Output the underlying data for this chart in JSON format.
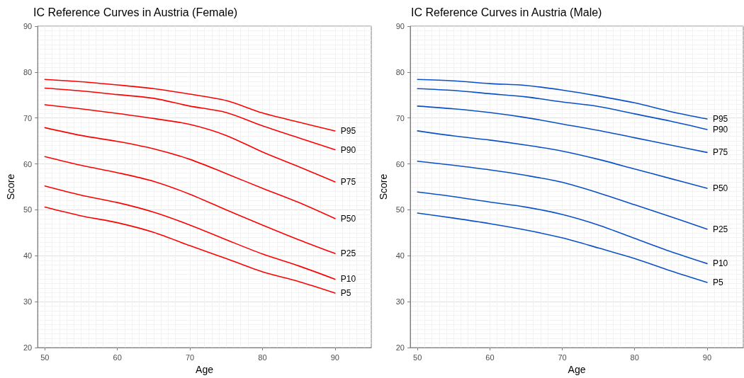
{
  "chart_data": [
    {
      "type": "line",
      "title": "IC Reference Curves in Austria (Female)",
      "xlabel": "Age",
      "ylabel": "Score",
      "xlim": [
        49,
        95
      ],
      "ylim": [
        20,
        90
      ],
      "xticks": [
        50,
        60,
        70,
        80,
        90
      ],
      "yticks": [
        20,
        30,
        40,
        50,
        60,
        70,
        80,
        90
      ],
      "grid": true,
      "legend": false,
      "marker": "none",
      "line_style": "solid",
      "x": [
        50,
        55,
        60,
        65,
        70,
        75,
        80,
        85,
        90
      ],
      "series": [
        {
          "name": "P95",
          "color": "#ff0000",
          "values": [
            78.4,
            77.9,
            77.2,
            76.4,
            75.2,
            73.8,
            71.1,
            69.1,
            67.2
          ]
        },
        {
          "name": "P90",
          "color": "#ff0000",
          "values": [
            76.5,
            75.9,
            75.1,
            74.3,
            72.6,
            71.2,
            68.3,
            65.7,
            63.1
          ]
        },
        {
          "name": "P75",
          "color": "#ff0000",
          "values": [
            72.9,
            72.0,
            71.0,
            69.9,
            68.6,
            66.2,
            62.6,
            59.4,
            56.1
          ]
        },
        {
          "name": "P50",
          "color": "#ff0000",
          "values": [
            67.9,
            66.2,
            64.9,
            63.3,
            61.0,
            57.9,
            54.7,
            51.6,
            48.1
          ]
        },
        {
          "name": "P25",
          "color": "#ff0000",
          "values": [
            61.6,
            59.7,
            58.1,
            56.2,
            53.4,
            50.0,
            46.7,
            43.5,
            40.5
          ]
        },
        {
          "name": "P10",
          "color": "#ff0000",
          "values": [
            55.2,
            53.2,
            51.6,
            49.5,
            46.7,
            43.5,
            40.4,
            37.8,
            34.9
          ]
        },
        {
          "name": "P5",
          "color": "#ff0000",
          "values": [
            50.6,
            48.7,
            47.2,
            45.1,
            42.2,
            39.4,
            36.5,
            34.4,
            31.9
          ]
        }
      ]
    },
    {
      "type": "line",
      "title": "IC Reference Curves in Austria (Male)",
      "xlabel": "Age",
      "ylabel": "Score",
      "xlim": [
        49,
        95
      ],
      "ylim": [
        20,
        90
      ],
      "xticks": [
        50,
        60,
        70,
        80,
        90
      ],
      "yticks": [
        20,
        30,
        40,
        50,
        60,
        70,
        80,
        90
      ],
      "grid": true,
      "legend": false,
      "marker": "none",
      "line_style": "solid",
      "x": [
        50,
        55,
        60,
        65,
        70,
        75,
        80,
        85,
        90
      ],
      "series": [
        {
          "name": "P95",
          "color": "#0a50c8",
          "values": [
            78.4,
            78.1,
            77.5,
            77.1,
            76.1,
            74.8,
            73.3,
            71.4,
            69.8
          ]
        },
        {
          "name": "P90",
          "color": "#0a50c8",
          "values": [
            76.4,
            76.0,
            75.3,
            74.6,
            73.5,
            72.5,
            70.9,
            69.3,
            67.5
          ]
        },
        {
          "name": "P75",
          "color": "#0a50c8",
          "values": [
            72.6,
            72.0,
            71.2,
            70.1,
            68.7,
            67.3,
            65.7,
            64.1,
            62.5
          ]
        },
        {
          "name": "P50",
          "color": "#0a50c8",
          "values": [
            67.2,
            66.1,
            65.2,
            64.1,
            62.8,
            61.0,
            58.9,
            56.8,
            54.7
          ]
        },
        {
          "name": "P25",
          "color": "#0a50c8",
          "values": [
            60.6,
            59.7,
            58.7,
            57.5,
            56.0,
            53.7,
            51.1,
            48.5,
            45.8
          ]
        },
        {
          "name": "P10",
          "color": "#0a50c8",
          "values": [
            53.9,
            52.9,
            51.7,
            50.6,
            49.0,
            46.7,
            43.8,
            40.9,
            38.3
          ]
        },
        {
          "name": "P5",
          "color": "#0a50c8",
          "values": [
            49.3,
            48.2,
            47.0,
            45.6,
            43.9,
            41.7,
            39.4,
            36.7,
            34.2
          ]
        }
      ]
    }
  ]
}
